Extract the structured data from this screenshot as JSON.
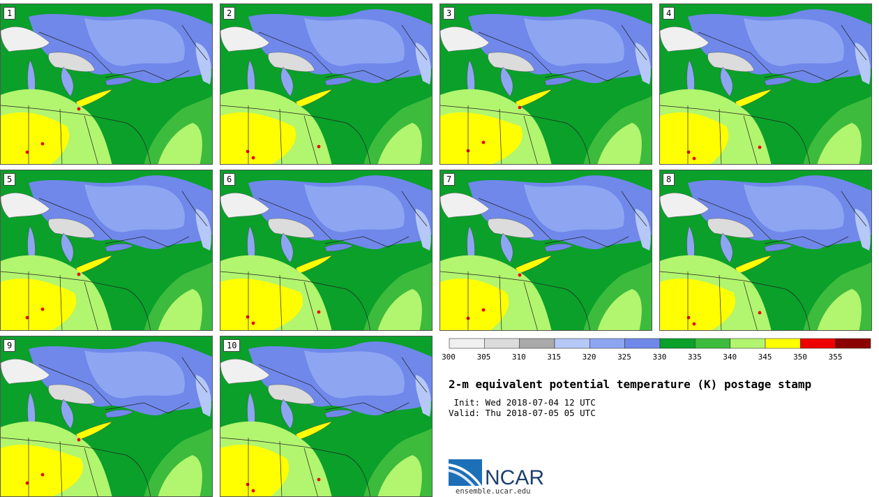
{
  "stamps": [
    {
      "label": "1"
    },
    {
      "label": "2"
    },
    {
      "label": "3"
    },
    {
      "label": "4"
    },
    {
      "label": "5"
    },
    {
      "label": "6"
    },
    {
      "label": "7"
    },
    {
      "label": "8"
    },
    {
      "label": "9"
    },
    {
      "label": "10"
    }
  ],
  "colorbar": {
    "ticks": [
      "300",
      "305",
      "310",
      "315",
      "320",
      "325",
      "330",
      "335",
      "340",
      "345",
      "350",
      "355"
    ],
    "colors": [
      "#f0f0f0",
      "#dcdcdc",
      "#a9a9a9",
      "#b5c8f7",
      "#8ea6f2",
      "#6f88ea",
      "#0aa02a",
      "#3dbb3d",
      "#b2f56e",
      "#ffff00",
      "#ee0000",
      "#8b0000"
    ]
  },
  "title": "2-m equivalent potential temperature (K) postage stamp",
  "init_line": " Init: Wed 2018-07-04 12 UTC",
  "valid_line": "Valid: Thu 2018-07-05 05 UTC",
  "logo": {
    "text": "NCAR",
    "url": "ensemble.ucar.edu"
  }
}
